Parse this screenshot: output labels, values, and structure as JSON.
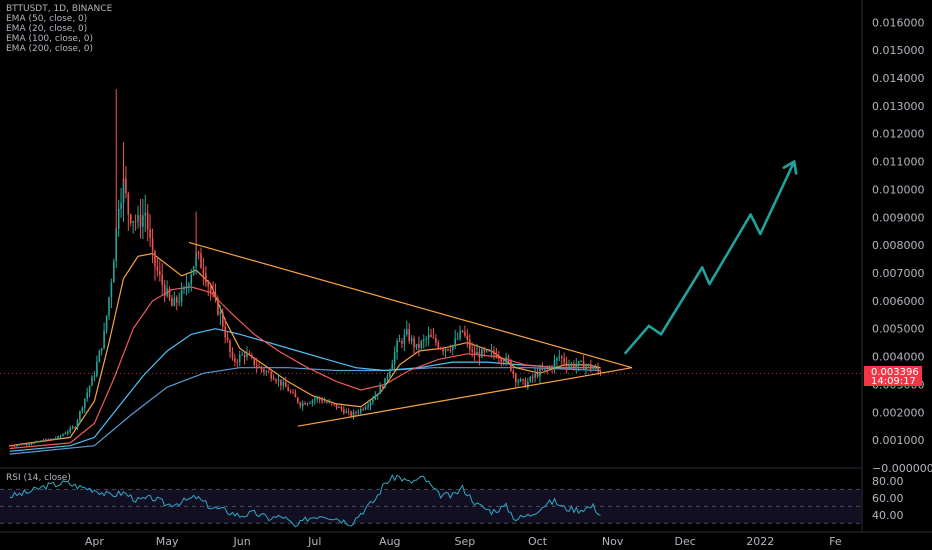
{
  "header": {
    "symbol": "BTTUSDT, 1D, BINANCE",
    "indicators": [
      "EMA (50, close, 0)",
      "EMA (20, close, 0)",
      "EMA (100, close, 0)",
      "EMA (200, close, 0)"
    ],
    "rsi_label": "RSI (14, close)"
  },
  "price_badge": {
    "price": "0.003396",
    "countdown": "14:09:17",
    "color": "#f23645"
  },
  "colors": {
    "up": "#26a69a",
    "down": "#ef5350",
    "ema20": "#f7a440",
    "ema50": "#f05a5a",
    "ema100": "#4fc3f7",
    "ema200": "#5b9bd5",
    "triangle": "#f7a440",
    "arrow": "#1fa39a",
    "rsi": "#2ea8c6"
  },
  "chart_data": [
    {
      "type": "candlestick",
      "title": "BTTUSDT, 1D, BINANCE",
      "x_ticks": [
        "Apr",
        "May",
        "Jun",
        "Jul",
        "Aug",
        "Sep",
        "Oct",
        "Nov",
        "Dec",
        "2022",
        "Fe"
      ],
      "y_ticks": [
        "0.016000",
        "0.015000",
        "0.014000",
        "0.013000",
        "0.012000",
        "0.011000",
        "0.010000",
        "0.009000",
        "0.008000",
        "0.007000",
        "0.006000",
        "0.005000",
        "0.004000",
        "0.003000",
        "0.002000",
        "0.001000",
        "0.000000"
      ],
      "ylim": [
        0,
        0.0168
      ],
      "x_range_days": [
        -39,
        317
      ],
      "grid": false,
      "last_price": 0.003396,
      "ohlc_points": [
        {
          "d": -35,
          "c": 0.0008
        },
        {
          "d": -25,
          "c": 0.0009
        },
        {
          "d": -15,
          "c": 0.0011
        },
        {
          "d": -8,
          "c": 0.0015
        },
        {
          "d": -4,
          "c": 0.0025
        },
        {
          "d": 0,
          "c": 0.0034
        },
        {
          "d": 4,
          "c": 0.0048
        },
        {
          "d": 7,
          "c": 0.0068
        },
        {
          "d": 9,
          "c": 0.0085
        },
        {
          "d": 10,
          "c": 0.0096
        },
        {
          "d": 12,
          "c": 0.0102
        },
        {
          "d": 14,
          "c": 0.0092
        },
        {
          "d": 18,
          "c": 0.0088
        },
        {
          "d": 21,
          "c": 0.0092
        },
        {
          "d": 24,
          "c": 0.0075
        },
        {
          "d": 27,
          "c": 0.0068
        },
        {
          "d": 32,
          "c": 0.0058
        },
        {
          "d": 37,
          "c": 0.0063
        },
        {
          "d": 42,
          "c": 0.0076
        },
        {
          "d": 45,
          "c": 0.0072
        },
        {
          "d": 48,
          "c": 0.0063
        },
        {
          "d": 52,
          "c": 0.0055
        },
        {
          "d": 57,
          "c": 0.0038
        },
        {
          "d": 62,
          "c": 0.0041
        },
        {
          "d": 68,
          "c": 0.0036
        },
        {
          "d": 74,
          "c": 0.0033
        },
        {
          "d": 80,
          "c": 0.0028
        },
        {
          "d": 85,
          "c": 0.0023
        },
        {
          "d": 92,
          "c": 0.0025
        },
        {
          "d": 100,
          "c": 0.0022
        },
        {
          "d": 106,
          "c": 0.0019
        },
        {
          "d": 110,
          "c": 0.0021
        },
        {
          "d": 115,
          "c": 0.0025
        },
        {
          "d": 120,
          "c": 0.0031
        },
        {
          "d": 125,
          "c": 0.0044
        },
        {
          "d": 129,
          "c": 0.0048
        },
        {
          "d": 133,
          "c": 0.0043
        },
        {
          "d": 138,
          "c": 0.0047
        },
        {
          "d": 144,
          "c": 0.0043
        },
        {
          "d": 148,
          "c": 0.0044
        },
        {
          "d": 152,
          "c": 0.0049
        },
        {
          "d": 156,
          "c": 0.0041
        },
        {
          "d": 161,
          "c": 0.0041
        },
        {
          "d": 166,
          "c": 0.0041
        },
        {
          "d": 171,
          "c": 0.0038
        },
        {
          "d": 174,
          "c": 0.0032
        },
        {
          "d": 178,
          "c": 0.003
        },
        {
          "d": 183,
          "c": 0.0034
        },
        {
          "d": 188,
          "c": 0.0036
        },
        {
          "d": 192,
          "c": 0.004
        },
        {
          "d": 196,
          "c": 0.0037
        },
        {
          "d": 202,
          "c": 0.0037
        },
        {
          "d": 206,
          "c": 0.0036
        },
        {
          "d": 209,
          "c": 0.0034
        }
      ],
      "ema_20": [
        [
          -35,
          0.0008
        ],
        [
          -10,
          0.0011
        ],
        [
          0,
          0.0024
        ],
        [
          6,
          0.0045
        ],
        [
          12,
          0.0068
        ],
        [
          18,
          0.0076
        ],
        [
          24,
          0.0077
        ],
        [
          30,
          0.0073
        ],
        [
          36,
          0.0069
        ],
        [
          42,
          0.0071
        ],
        [
          48,
          0.0066
        ],
        [
          54,
          0.0053
        ],
        [
          60,
          0.0043
        ],
        [
          70,
          0.0037
        ],
        [
          80,
          0.0031
        ],
        [
          90,
          0.0026
        ],
        [
          100,
          0.0023
        ],
        [
          110,
          0.0022
        ],
        [
          118,
          0.0027
        ],
        [
          126,
          0.0037
        ],
        [
          134,
          0.0042
        ],
        [
          144,
          0.0043
        ],
        [
          154,
          0.0045
        ],
        [
          164,
          0.0042
        ],
        [
          174,
          0.0036
        ],
        [
          184,
          0.0034
        ],
        [
          194,
          0.0037
        ],
        [
          204,
          0.0037
        ],
        [
          209,
          0.0036
        ]
      ],
      "ema_50": [
        [
          -35,
          0.0007
        ],
        [
          -10,
          0.0009
        ],
        [
          0,
          0.0016
        ],
        [
          8,
          0.0032
        ],
        [
          16,
          0.005
        ],
        [
          24,
          0.006
        ],
        [
          32,
          0.0064
        ],
        [
          40,
          0.0065
        ],
        [
          48,
          0.0063
        ],
        [
          56,
          0.0056
        ],
        [
          66,
          0.0048
        ],
        [
          76,
          0.0042
        ],
        [
          88,
          0.0036
        ],
        [
          100,
          0.0031
        ],
        [
          110,
          0.0028
        ],
        [
          120,
          0.003
        ],
        [
          130,
          0.0035
        ],
        [
          142,
          0.0039
        ],
        [
          154,
          0.0041
        ],
        [
          166,
          0.004
        ],
        [
          178,
          0.0037
        ],
        [
          192,
          0.0036
        ],
        [
          209,
          0.0036
        ]
      ],
      "ema_100": [
        [
          -35,
          0.0006
        ],
        [
          -10,
          0.0008
        ],
        [
          0,
          0.0011
        ],
        [
          10,
          0.0022
        ],
        [
          20,
          0.0033
        ],
        [
          30,
          0.0042
        ],
        [
          40,
          0.0048
        ],
        [
          50,
          0.005
        ],
        [
          60,
          0.0048
        ],
        [
          72,
          0.0045
        ],
        [
          84,
          0.0042
        ],
        [
          96,
          0.0039
        ],
        [
          108,
          0.0036
        ],
        [
          120,
          0.0035
        ],
        [
          134,
          0.0036
        ],
        [
          148,
          0.0038
        ],
        [
          162,
          0.0038
        ],
        [
          176,
          0.0037
        ],
        [
          192,
          0.0036
        ],
        [
          209,
          0.0036
        ]
      ],
      "ema_200": [
        [
          -35,
          0.0005
        ],
        [
          0,
          0.0008
        ],
        [
          15,
          0.0019
        ],
        [
          30,
          0.0029
        ],
        [
          45,
          0.0034
        ],
        [
          60,
          0.0036
        ],
        [
          80,
          0.0036
        ],
        [
          100,
          0.0035
        ],
        [
          120,
          0.0035
        ],
        [
          140,
          0.0036
        ],
        [
          160,
          0.0036
        ],
        [
          180,
          0.0036
        ],
        [
          209,
          0.0035
        ]
      ],
      "triangle_upper": [
        [
          39,
          0.0081
        ],
        [
          222,
          0.0036
        ]
      ],
      "triangle_lower": [
        [
          84,
          0.0015
        ],
        [
          222,
          0.0036
        ]
      ],
      "projection_arrow": [
        [
          219,
          0.0041
        ],
        [
          229,
          0.0051
        ],
        [
          234,
          0.0048
        ],
        [
          251,
          0.0072
        ],
        [
          254,
          0.0066
        ],
        [
          271,
          0.0091
        ],
        [
          275,
          0.0084
        ],
        [
          289,
          0.011
        ]
      ]
    },
    {
      "type": "line",
      "title": "RSI (14, close)",
      "y_ticks": [
        "80.00",
        "60.00",
        "40.00"
      ],
      "ylim": [
        22,
        93
      ],
      "levels": [
        70,
        50,
        30
      ],
      "values": [
        [
          -35,
          62
        ],
        [
          -28,
          66
        ],
        [
          -20,
          74
        ],
        [
          -12,
          78
        ],
        [
          -6,
          73
        ],
        [
          0,
          70
        ],
        [
          6,
          63
        ],
        [
          12,
          66
        ],
        [
          18,
          57
        ],
        [
          24,
          60
        ],
        [
          30,
          52
        ],
        [
          36,
          55
        ],
        [
          42,
          61
        ],
        [
          48,
          49
        ],
        [
          54,
          45
        ],
        [
          60,
          39
        ],
        [
          66,
          42
        ],
        [
          72,
          36
        ],
        [
          78,
          38
        ],
        [
          83,
          25
        ],
        [
          88,
          36
        ],
        [
          94,
          40
        ],
        [
          100,
          36
        ],
        [
          106,
          30
        ],
        [
          110,
          42
        ],
        [
          116,
          58
        ],
        [
          120,
          78
        ],
        [
          125,
          86
        ],
        [
          130,
          78
        ],
        [
          136,
          84
        ],
        [
          142,
          64
        ],
        [
          148,
          62
        ],
        [
          152,
          72
        ],
        [
          158,
          52
        ],
        [
          164,
          44
        ],
        [
          170,
          50
        ],
        [
          174,
          35
        ],
        [
          180,
          40
        ],
        [
          186,
          52
        ],
        [
          190,
          56
        ],
        [
          194,
          48
        ],
        [
          200,
          46
        ],
        [
          206,
          50
        ],
        [
          209,
          40
        ]
      ]
    }
  ]
}
